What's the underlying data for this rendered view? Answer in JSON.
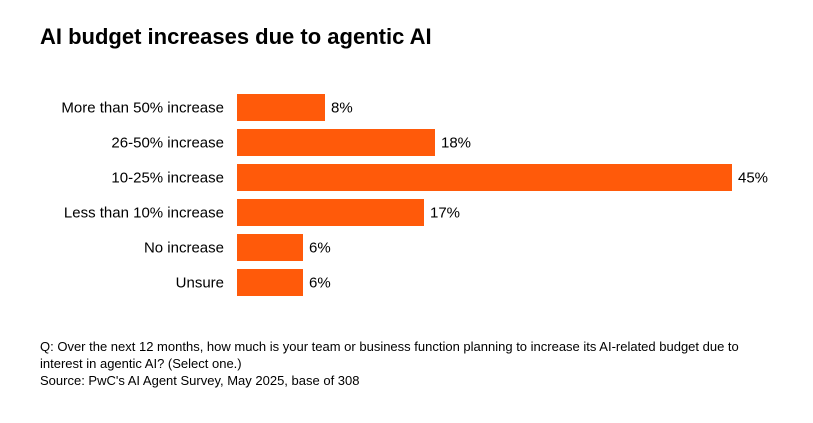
{
  "chart_data": {
    "type": "bar",
    "orientation": "horizontal",
    "title": "AI budget increases due to agentic AI",
    "categories": [
      "More than 50% increase",
      "26-50% increase",
      "10-25% increase",
      "Less than 10% increase",
      "No increase",
      "Unsure"
    ],
    "values": [
      8,
      18,
      45,
      17,
      6,
      6
    ],
    "data_labels": [
      "8%",
      "18%",
      "45%",
      "17%",
      "6%",
      "6%"
    ],
    "unit": "%",
    "bar_color": "#FF5A0A",
    "grid": false,
    "legend": "none"
  },
  "notes": {
    "question": "Q: Over the next 12 months, how much is your team or business function planning to increase its AI-related budget due to interest in agentic AI? (Select one.)",
    "source": "Source: PwC's AI Agent Survey, May 2025, base of 308"
  }
}
